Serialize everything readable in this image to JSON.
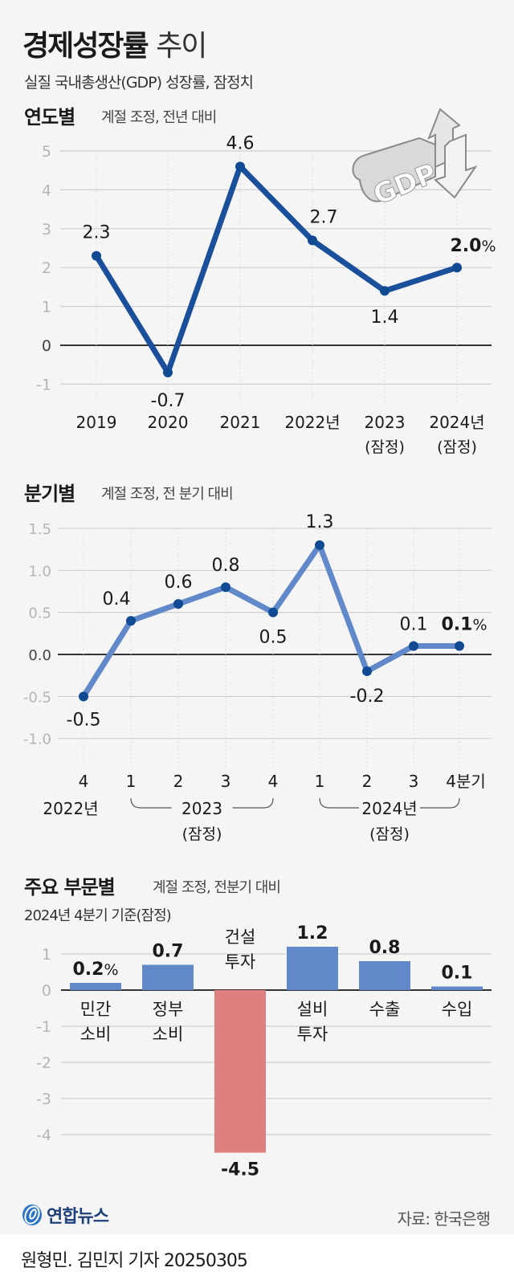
{
  "header": {
    "title_bold": "경제성장률",
    "title_light": "추이",
    "subtitle": "실질 국내총생산(GDP) 성장률, 잠정치"
  },
  "yearly": {
    "heading": "연도별",
    "note": "계절 조정, 전년 대비",
    "icon": "gdp-up-down-arrow-icon"
  },
  "quarterly": {
    "heading": "분기별",
    "note": "계절 조정, 전 분기 대비"
  },
  "sector": {
    "heading": "주요 부문별",
    "note": "계절 조정, 전분기 대비",
    "sub": "2024년 4분기 기준(잠정)"
  },
  "footer": {
    "logo": "연합뉴스",
    "source": "자료: 한국은행",
    "credit": "원형민. 김민지 기자  20250305"
  },
  "colors": {
    "yearly_line": "#1a4f9c",
    "quarterly_line": "#6189c9",
    "point": "#0f4a92",
    "bar_positive": "#6189c9",
    "bar_negative": "#e07f7f",
    "grid": "#cfcfcf",
    "zero": "#333333"
  },
  "chart_data": [
    {
      "type": "line",
      "title": "연도별 (계절 조정, 전년 대비)",
      "categories": [
        "2019",
        "2020",
        "2021",
        "2022년",
        "2023 (잠정)",
        "2024년 (잠정)"
      ],
      "values": [
        2.3,
        -0.7,
        4.6,
        2.7,
        1.4,
        2.0
      ],
      "labels": [
        "2.3",
        "-0.7",
        "4.6",
        "2.7",
        "1.4",
        "2.0%"
      ],
      "yticks": [
        "5",
        "4",
        "3",
        "2",
        "1",
        "0",
        "-1"
      ],
      "ylim": [
        -1,
        5
      ],
      "unit": "%",
      "grid": true
    },
    {
      "type": "line",
      "title": "분기별 (계절 조정, 전 분기 대비)",
      "categories": [
        "2022년 4",
        "2023 1",
        "2023 2",
        "2023 3",
        "2023 4",
        "2024 1",
        "2024 2",
        "2024 3",
        "2024 4분기"
      ],
      "tick_labels": [
        "4",
        "1",
        "2",
        "3",
        "4",
        "1",
        "2",
        "3",
        "4분기"
      ],
      "group_labels": [
        {
          "label": "2022년",
          "sub": ""
        },
        {
          "label": "2023",
          "sub": "(잠정)"
        },
        {
          "label": "2024년",
          "sub": "(잠정)"
        }
      ],
      "values": [
        -0.5,
        0.4,
        0.6,
        0.8,
        0.5,
        1.3,
        -0.2,
        0.1,
        0.1
      ],
      "labels": [
        "-0.5",
        "0.4",
        "0.6",
        "0.8",
        "0.5",
        "1.3",
        "-0.2",
        "0.1",
        "0.1%"
      ],
      "yticks": [
        "1.5",
        "1.0",
        "0.5",
        "0.0",
        "-0.5",
        "-1.0"
      ],
      "ylim": [
        -1.0,
        1.5
      ],
      "unit": "%",
      "grid": true
    },
    {
      "type": "bar",
      "title": "주요 부문별 (계절 조정, 전분기 대비, 2024년 4분기 기준(잠정))",
      "categories": [
        "민간 소비",
        "정부 소비",
        "건설 투자",
        "설비 투자",
        "수출",
        "수입"
      ],
      "cat_lines": [
        [
          "민간",
          "소비"
        ],
        [
          "정부",
          "소비"
        ],
        [
          "건설",
          "투자"
        ],
        [
          "설비",
          "투자"
        ],
        [
          "수출"
        ],
        [
          "수입"
        ]
      ],
      "values": [
        0.2,
        0.7,
        -4.5,
        1.2,
        0.8,
        0.1
      ],
      "labels": [
        "0.2%",
        "0.7",
        "-4.5",
        "1.2",
        "0.8",
        "0.1"
      ],
      "yticks": [
        "1",
        "0",
        "-1",
        "-2",
        "-3",
        "-4"
      ],
      "ylim": [
        -4.5,
        1.2
      ],
      "unit": "%",
      "grid": true
    }
  ]
}
